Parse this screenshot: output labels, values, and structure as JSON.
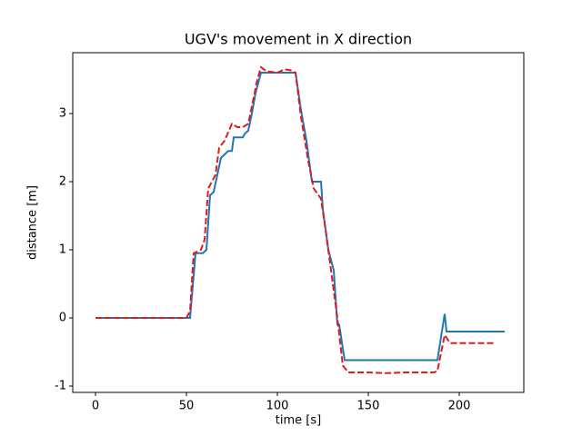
{
  "chart_data": {
    "type": "line",
    "title": "UGV's movement in X direction",
    "xlabel": "time [s]",
    "ylabel": "distance [m]",
    "xlim": [
      -12.5,
      235.5
    ],
    "ylim": [
      -1.093,
      3.893
    ],
    "xticks": [
      0,
      50,
      100,
      150,
      200
    ],
    "yticks": [
      -1,
      0,
      1,
      2,
      3
    ],
    "series": [
      {
        "color": "#1f77b4",
        "dash": false,
        "x": [
          0,
          50,
          52,
          55,
          59,
          61,
          63,
          65,
          69,
          71,
          73,
          75,
          76,
          81,
          82,
          84,
          86,
          88,
          91,
          110,
          113,
          116,
          119,
          124,
          125,
          128,
          131,
          133,
          134,
          137,
          188,
          192,
          193,
          225
        ],
        "values": [
          0,
          0,
          0,
          0.95,
          0.95,
          1.0,
          1.8,
          1.85,
          2.35,
          2.4,
          2.45,
          2.45,
          2.65,
          2.65,
          2.7,
          2.75,
          3.0,
          3.3,
          3.6,
          3.6,
          3.05,
          2.6,
          2.0,
          2.0,
          1.6,
          1.0,
          0.7,
          -0.1,
          -0.1,
          -0.62,
          -0.62,
          0.06,
          -0.2,
          -0.2
        ]
      },
      {
        "color": "#e31a1c",
        "dash": true,
        "x": [
          0,
          50,
          52,
          54,
          58,
          60,
          62,
          66,
          68,
          71,
          75,
          78,
          81,
          84,
          89,
          91,
          94,
          100,
          104,
          108,
          110,
          113,
          117,
          120,
          124,
          127,
          130,
          133,
          136,
          139,
          150,
          160,
          170,
          186,
          188,
          192,
          195,
          220
        ],
        "values": [
          0,
          0,
          0.1,
          0.95,
          1.0,
          1.15,
          1.9,
          2.1,
          2.5,
          2.6,
          2.85,
          2.8,
          2.8,
          2.85,
          3.5,
          3.68,
          3.62,
          3.6,
          3.65,
          3.63,
          3.6,
          2.95,
          2.3,
          1.9,
          1.75,
          1.2,
          0.6,
          0.0,
          -0.7,
          -0.8,
          -0.8,
          -0.81,
          -0.8,
          -0.8,
          -0.78,
          -0.25,
          -0.37,
          -0.37
        ]
      }
    ]
  }
}
